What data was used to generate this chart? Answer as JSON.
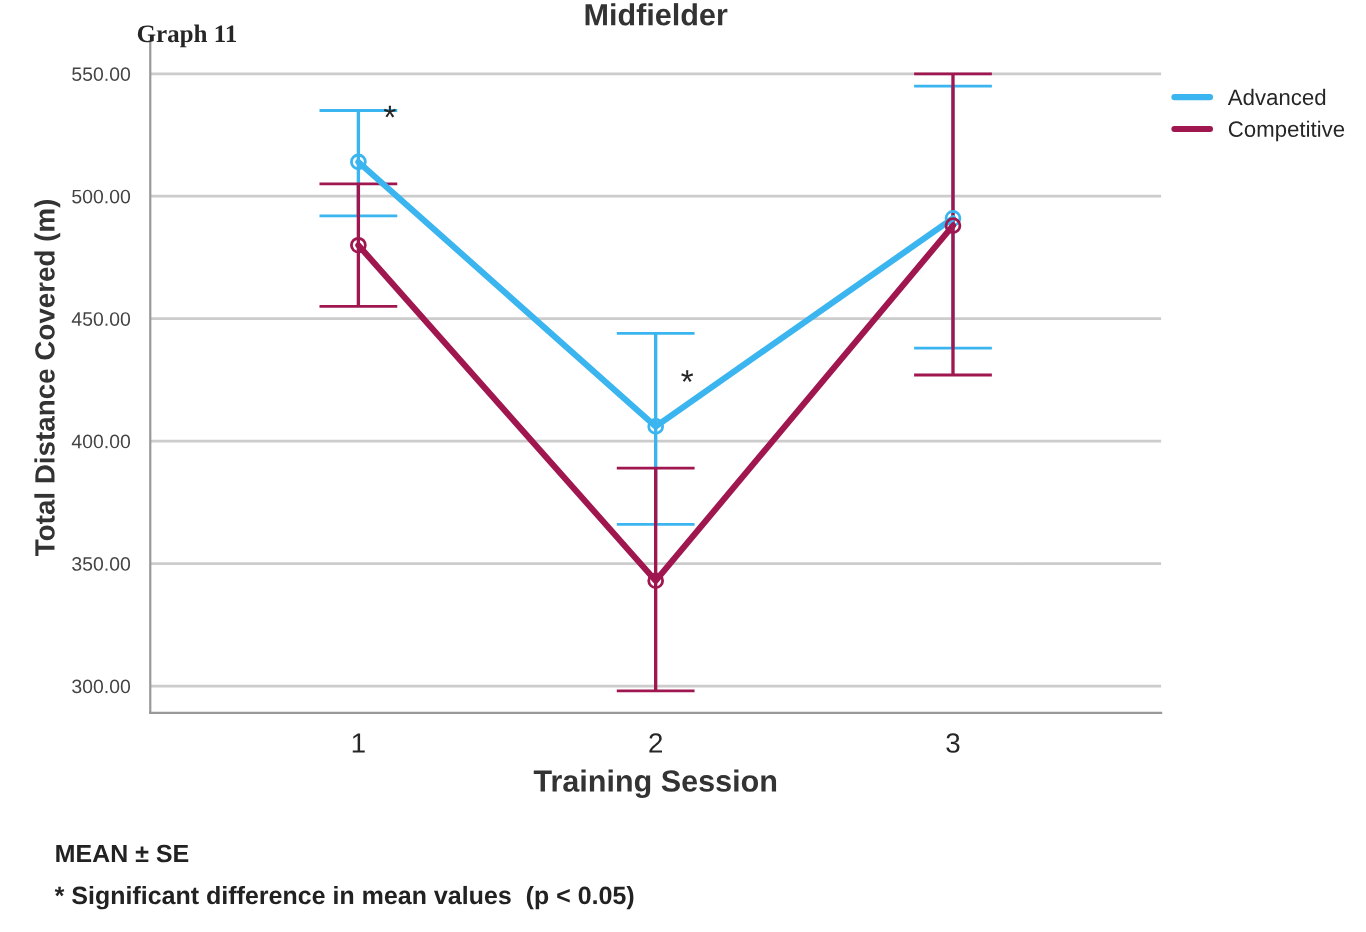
{
  "chart_data": {
    "type": "line",
    "title": "Midfielder",
    "xlabel": "Training Session",
    "ylabel": "Total Distance Covered (m)",
    "categories": [
      "1",
      "2",
      "3"
    ],
    "series": [
      {
        "name": "Advanced",
        "color": "#3bb5ef",
        "values": [
          514,
          406,
          491
        ],
        "errors": [
          [
            492,
            535
          ],
          [
            366,
            444
          ],
          [
            438,
            545
          ]
        ]
      },
      {
        "name": "Competitive",
        "color": "#a0174f",
        "values": [
          480,
          343,
          488
        ],
        "errors": [
          [
            455,
            505
          ],
          [
            298,
            389
          ],
          [
            427,
            550
          ]
        ]
      }
    ],
    "ylim": [
      289,
      563
    ],
    "yticks": [
      {
        "value": 300,
        "label": "300.00"
      },
      {
        "value": 350,
        "label": "350.00"
      },
      {
        "value": 400,
        "label": "400.00"
      },
      {
        "value": 450,
        "label": "450.00"
      },
      {
        "value": 500,
        "label": "500.00"
      },
      {
        "value": 550,
        "label": "550.00"
      }
    ],
    "grid": "y",
    "legend": "top right",
    "marker": "circle",
    "line_style": "solid",
    "annotations": [
      "Graph 11",
      {
        "text": "*",
        "x": "1",
        "y": 514
      },
      {
        "text": "*",
        "x": "2",
        "y": 406
      },
      "MEAN ± SE",
      "* Significant difference in mean values  (p < 0.05)"
    ]
  }
}
